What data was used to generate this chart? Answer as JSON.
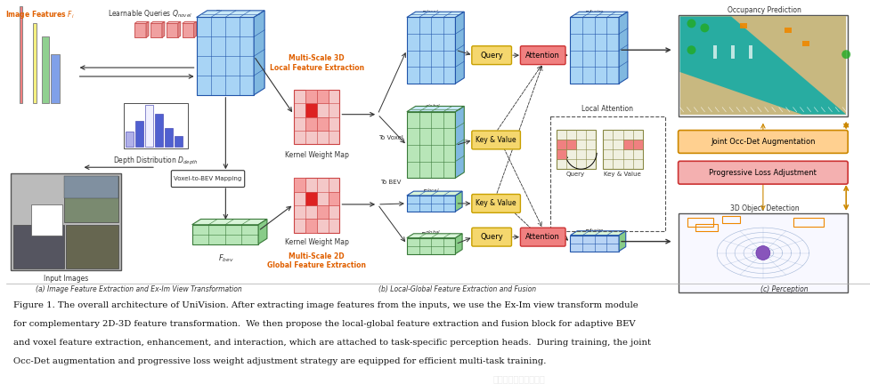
{
  "background_color": "#ffffff",
  "caption_lines": [
    "Figure 1. The overall architecture of UniVision. After extracting image features from the inputs, we use the Ex-Im view transform module",
    "for complementary 2D-3D feature transformation.  We then propose the local-global feature extraction and fusion block for adaptive BEV",
    "and voxel feature extraction, enhancement, and interaction, which are attached to task-specific perception heads.  During training, the joint",
    "Occ-Det augmentation and progressive loss weight adjustment strategy are equipped for efficient multi-task training."
  ],
  "subcaption_a": "(a) Image Feature Extraction and Ex-Im View Transformation",
  "subcaption_b": "(b) Local-Global Feature Extraction and Fusion",
  "subcaption_c": "(c) Perception",
  "fig_width": 9.77,
  "fig_height": 4.41,
  "dpi": 100
}
